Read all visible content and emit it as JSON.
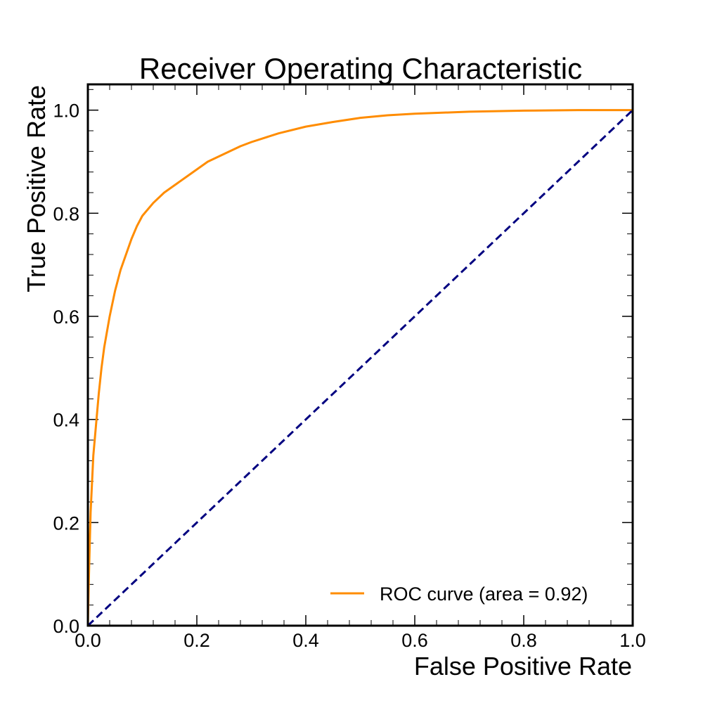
{
  "chart_data": {
    "type": "line",
    "title": "Receiver Operating Characteristic",
    "xlabel": "False Positive Rate",
    "ylabel": "True Positive Rate",
    "xlim": [
      0.0,
      1.0
    ],
    "ylim": [
      0.0,
      1.05
    ],
    "x_ticks": [
      "0.0",
      "0.2",
      "0.4",
      "0.6",
      "0.8",
      "1.0"
    ],
    "y_ticks": [
      "0.0",
      "0.2",
      "0.4",
      "0.6",
      "0.8",
      "1.0"
    ],
    "grid": false,
    "legend_position": "lower right",
    "series": [
      {
        "name": "ROC curve (area = 0.92)",
        "color": "#ff8c00",
        "linestyle": "solid",
        "x": [
          0.0,
          0.002,
          0.005,
          0.01,
          0.015,
          0.02,
          0.025,
          0.03,
          0.04,
          0.05,
          0.06,
          0.07,
          0.08,
          0.09,
          0.1,
          0.12,
          0.14,
          0.16,
          0.18,
          0.2,
          0.22,
          0.25,
          0.28,
          0.3,
          0.35,
          0.4,
          0.45,
          0.5,
          0.55,
          0.6,
          0.7,
          0.8,
          0.9,
          1.0
        ],
        "y": [
          0.0,
          0.1,
          0.22,
          0.33,
          0.39,
          0.45,
          0.5,
          0.54,
          0.6,
          0.65,
          0.69,
          0.72,
          0.75,
          0.775,
          0.795,
          0.82,
          0.84,
          0.855,
          0.87,
          0.885,
          0.9,
          0.915,
          0.93,
          0.938,
          0.955,
          0.968,
          0.977,
          0.985,
          0.99,
          0.993,
          0.997,
          0.999,
          1.0,
          1.0
        ]
      },
      {
        "name": "",
        "color": "#000080",
        "linestyle": "dashed",
        "x": [
          0.0,
          1.0
        ],
        "y": [
          0.0,
          1.0
        ]
      }
    ],
    "legend": [
      {
        "label": "ROC curve (area = 0.92)",
        "color": "#ff8c00"
      }
    ]
  }
}
